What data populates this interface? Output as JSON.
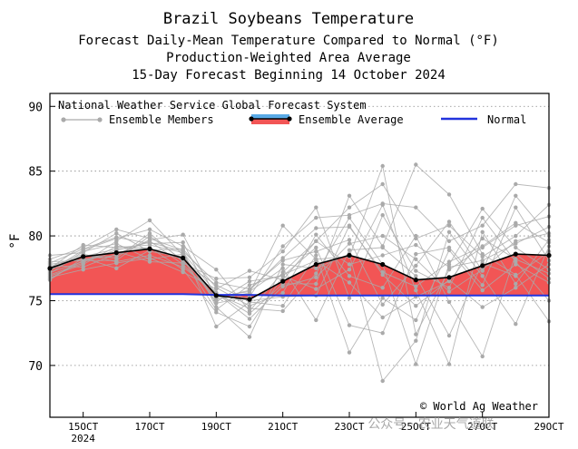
{
  "chart_data": {
    "type": "line",
    "title": "Brazil Soybeans Temperature",
    "subtitle_lines": [
      "Forecast Daily-Mean Temperature Compared to Normal (°F)",
      "Production-Weighted Area Average",
      "15-Day Forecast Beginning 14 October 2024"
    ],
    "ylabel": "°F",
    "ylim": [
      66,
      91
    ],
    "yticks": [
      "70",
      "75",
      "80",
      "85",
      "90"
    ],
    "ytick_values": [
      70,
      75,
      80,
      85,
      90
    ],
    "xlim": [
      0,
      15
    ],
    "xticks": [
      {
        "at": 1,
        "label": "15OCT",
        "sub": "2024"
      },
      {
        "at": 3,
        "label": "17OCT"
      },
      {
        "at": 5,
        "label": "19OCT"
      },
      {
        "at": 7,
        "label": "21OCT"
      },
      {
        "at": 9,
        "label": "23OCT"
      },
      {
        "at": 11,
        "label": "25OCT"
      },
      {
        "at": 13,
        "label": "27OCT"
      },
      {
        "at": 15,
        "label": "29OCT"
      }
    ],
    "days": [
      0,
      1,
      2,
      3,
      4,
      5,
      6,
      7,
      8,
      9,
      10,
      11,
      12,
      13,
      14,
      15
    ],
    "legend_title": "National Weather Service Global Forecast System",
    "legend": {
      "members": "Ensemble Members",
      "average": "Ensemble Average",
      "normal": "Normal"
    },
    "series": [
      {
        "name": "Ensemble Average",
        "values": [
          77.5,
          78.4,
          78.7,
          79.0,
          78.3,
          75.4,
          75.1,
          76.5,
          77.8,
          78.5,
          77.8,
          76.6,
          76.8,
          77.7,
          78.6,
          78.5
        ]
      },
      {
        "name": "Normal",
        "values": [
          75.5,
          75.5,
          75.5,
          75.5,
          75.5,
          75.45,
          75.45,
          75.4,
          75.4,
          75.4,
          75.4,
          75.4,
          75.4,
          75.4,
          75.4,
          75.4
        ]
      }
    ],
    "ensemble_members": [
      [
        77.3,
        78.9,
        79.8,
        80.5,
        79.2,
        77.4,
        74.2,
        77.2,
        79.6,
        82.2,
        84.0,
        79.8,
        80.8,
        78.4,
        80.0,
        82.4
      ],
      [
        77.8,
        78.2,
        78.5,
        79.7,
        80.1,
        75.2,
        75.8,
        78.3,
        80.6,
        80.7,
        77.2,
        76.1,
        78.0,
        79.2,
        81.0,
        79.5
      ],
      [
        76.9,
        77.8,
        79.2,
        79.0,
        78.2,
        74.3,
        76.2,
        77.0,
        78.1,
        76.4,
        73.7,
        75.3,
        76.5,
        79.8,
        78.2,
        77.1
      ],
      [
        77.6,
        78.6,
        78.0,
        78.5,
        77.6,
        75.6,
        73.6,
        76.1,
        76.8,
        79.4,
        80.0,
        78.2,
        75.7,
        77.4,
        79.6,
        80.2
      ],
      [
        78.2,
        79.1,
        80.5,
        79.8,
        78.9,
        73.0,
        74.9,
        74.6,
        78.5,
        71.0,
        75.2,
        73.5,
        78.9,
        75.8,
        77.8,
        76.4
      ],
      [
        77.0,
        77.9,
        79.6,
        81.2,
        78.5,
        74.8,
        75.3,
        79.2,
        81.4,
        81.6,
        82.5,
        82.2,
        79.6,
        80.8,
        84.0,
        83.7
      ],
      [
        77.4,
        78.5,
        78.3,
        80.2,
        78.0,
        76.2,
        75.0,
        75.3,
        75.4,
        80.8,
        77.0,
        74.6,
        76.6,
        74.5,
        76.0,
        77.8
      ],
      [
        76.8,
        77.4,
        77.9,
        78.3,
        77.2,
        75.9,
        77.3,
        76.6,
        79.6,
        77.8,
        78.5,
        79.3,
        77.6,
        78.1,
        79.4,
        80.7
      ],
      [
        77.9,
        79.0,
        79.9,
        79.4,
        79.5,
        74.5,
        72.2,
        77.8,
        77.5,
        78.6,
        68.8,
        71.9,
        80.3,
        76.9,
        73.2,
        79.2
      ],
      [
        77.2,
        78.0,
        78.8,
        78.0,
        77.9,
        76.7,
        76.8,
        78.8,
        82.2,
        75.2,
        81.6,
        77.3,
        76.0,
        81.4,
        78.0,
        75.0
      ],
      [
        77.5,
        79.3,
        79.1,
        79.3,
        78.7,
        75.6,
        74.0,
        76.3,
        76.3,
        83.1,
        79.2,
        85.5,
        83.2,
        78.6,
        77.0,
        73.4
      ],
      [
        78.5,
        78.7,
        80.2,
        78.8,
        78.4,
        75.1,
        75.6,
        80.8,
        78.2,
        78.4,
        85.4,
        72.4,
        77.4,
        79.1,
        80.8,
        81.5
      ],
      [
        76.6,
        78.3,
        77.5,
        78.9,
        79.0,
        76.0,
        74.6,
        75.6,
        80.1,
        76.9,
        76.0,
        80.0,
        74.9,
        70.7,
        78.6,
        76.7
      ],
      [
        77.7,
        77.6,
        78.6,
        79.6,
        77.8,
        75.3,
        75.7,
        77.5,
        73.5,
        78.9,
        79.1,
        76.9,
        72.3,
        77.9,
        76.9,
        78.8
      ],
      [
        77.1,
        78.8,
        79.4,
        78.2,
        78.6,
        74.9,
        76.5,
        76.9,
        79.1,
        73.1,
        72.5,
        78.6,
        79.1,
        76.2,
        82.2,
        78.1
      ],
      [
        78.0,
        78.1,
        78.1,
        80.0,
        78.1,
        75.5,
        74.4,
        74.2,
        77.1,
        81.4,
        77.8,
        70.1,
        77.8,
        82.1,
        79.1,
        77.4
      ],
      [
        77.4,
        78.4,
        79.0,
        79.1,
        77.4,
        74.1,
        73.0,
        76.9,
        75.9,
        77.4,
        82.4,
        75.8,
        70.1,
        80.3,
        76.3,
        79.7
      ],
      [
        76.7,
        78.1,
        78.9,
        79.5,
        78.8,
        76.4,
        75.9,
        78.1,
        78.8,
        79.7,
        74.7,
        77.7,
        81.1,
        77.3,
        83.1,
        80.0
      ]
    ],
    "credit": "© World Ag Weather"
  },
  "watermark": "公众号 · 农业天气道联",
  "colors": {
    "members": "#aaaaaa",
    "average_fill": "#f25555",
    "average_line": "#000000",
    "normal": "#2233dd",
    "legend_avg_band": "#5aaae6"
  }
}
